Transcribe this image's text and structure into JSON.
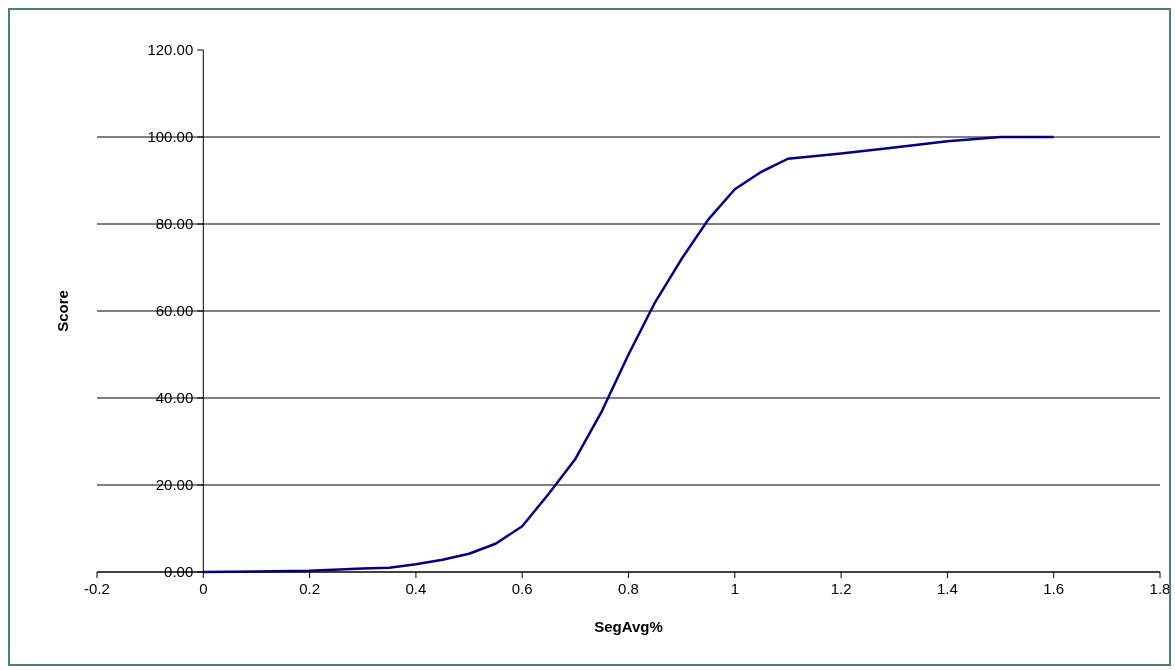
{
  "chart_data": {
    "type": "line",
    "xlabel": "SegAvg%",
    "ylabel": "Score",
    "x": [
      0,
      0.1,
      0.2,
      0.3,
      0.35,
      0.4,
      0.45,
      0.5,
      0.55,
      0.6,
      0.65,
      0.7,
      0.75,
      0.8,
      0.85,
      0.9,
      0.95,
      1,
      1.05,
      1.1,
      1.2,
      1.3,
      1.4,
      1.5,
      1.6
    ],
    "series": [
      {
        "color": "#000080",
        "values": [
          0,
          0.1,
          0.3,
          0.8,
          1,
          1.8,
          2.8,
          4.2,
          6.5,
          10.5,
          18,
          26,
          37,
          50,
          62,
          72,
          81,
          88,
          92,
          95,
          96.2,
          97.6,
          99,
          100,
          100
        ]
      }
    ],
    "xlim": [
      -0.2,
      1.8
    ],
    "xticks": [
      -0.2,
      0,
      0.2,
      0.4,
      0.6,
      0.8,
      1,
      1.2,
      1.4,
      1.6,
      1.8
    ],
    "ylim": [
      0,
      120
    ],
    "yticks": [
      {
        "value": 0,
        "label": "0.00"
      },
      {
        "value": 20,
        "label": "20.00"
      },
      {
        "value": 40,
        "label": "40.00"
      },
      {
        "value": 60,
        "label": "60.00"
      },
      {
        "value": 80,
        "label": "80.00"
      },
      {
        "value": 100,
        "label": "100.00"
      },
      {
        "value": 120,
        "label": "120.00"
      }
    ],
    "grid": "y",
    "marker": "none",
    "line_style": "solid"
  }
}
